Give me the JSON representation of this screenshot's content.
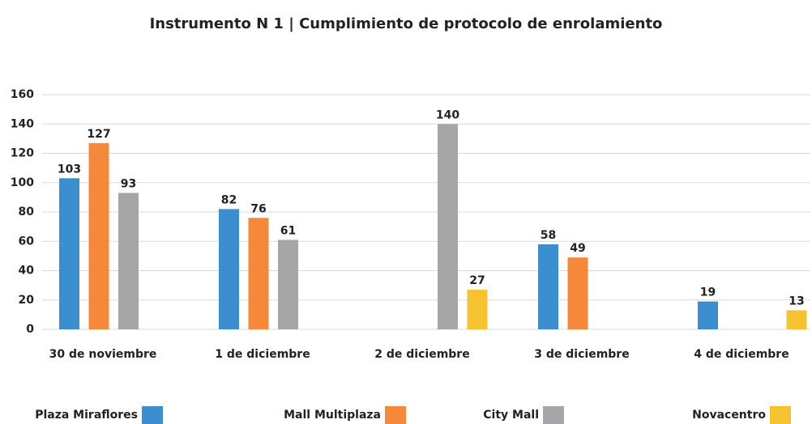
{
  "chart_data": {
    "type": "bar",
    "title": "Instrumento N 1 | Cumplimiento de protocolo de enrolamiento",
    "categories": [
      "30 de noviembre",
      "1 de diciembre",
      "2 de diciembre",
      "3 de diciembre",
      "4 de diciembre"
    ],
    "series": [
      {
        "name": "Plaza Miraflores",
        "color": "#3b8fd0",
        "values": [
          103,
          82,
          null,
          58,
          19
        ]
      },
      {
        "name": "Mall Multiplaza",
        "color": "#f5883a",
        "values": [
          127,
          76,
          null,
          49,
          null
        ]
      },
      {
        "name": "City Mall",
        "color": "#a6a6a8",
        "values": [
          93,
          61,
          140,
          null,
          null
        ]
      },
      {
        "name": "Novacentro",
        "color": "#f5c230",
        "values": [
          null,
          null,
          27,
          null,
          13
        ]
      }
    ],
    "ylim": [
      0,
      160
    ],
    "yticks": [
      0,
      20,
      40,
      60,
      80,
      100,
      120,
      140,
      160
    ],
    "grid": true,
    "legend": "bottom"
  }
}
